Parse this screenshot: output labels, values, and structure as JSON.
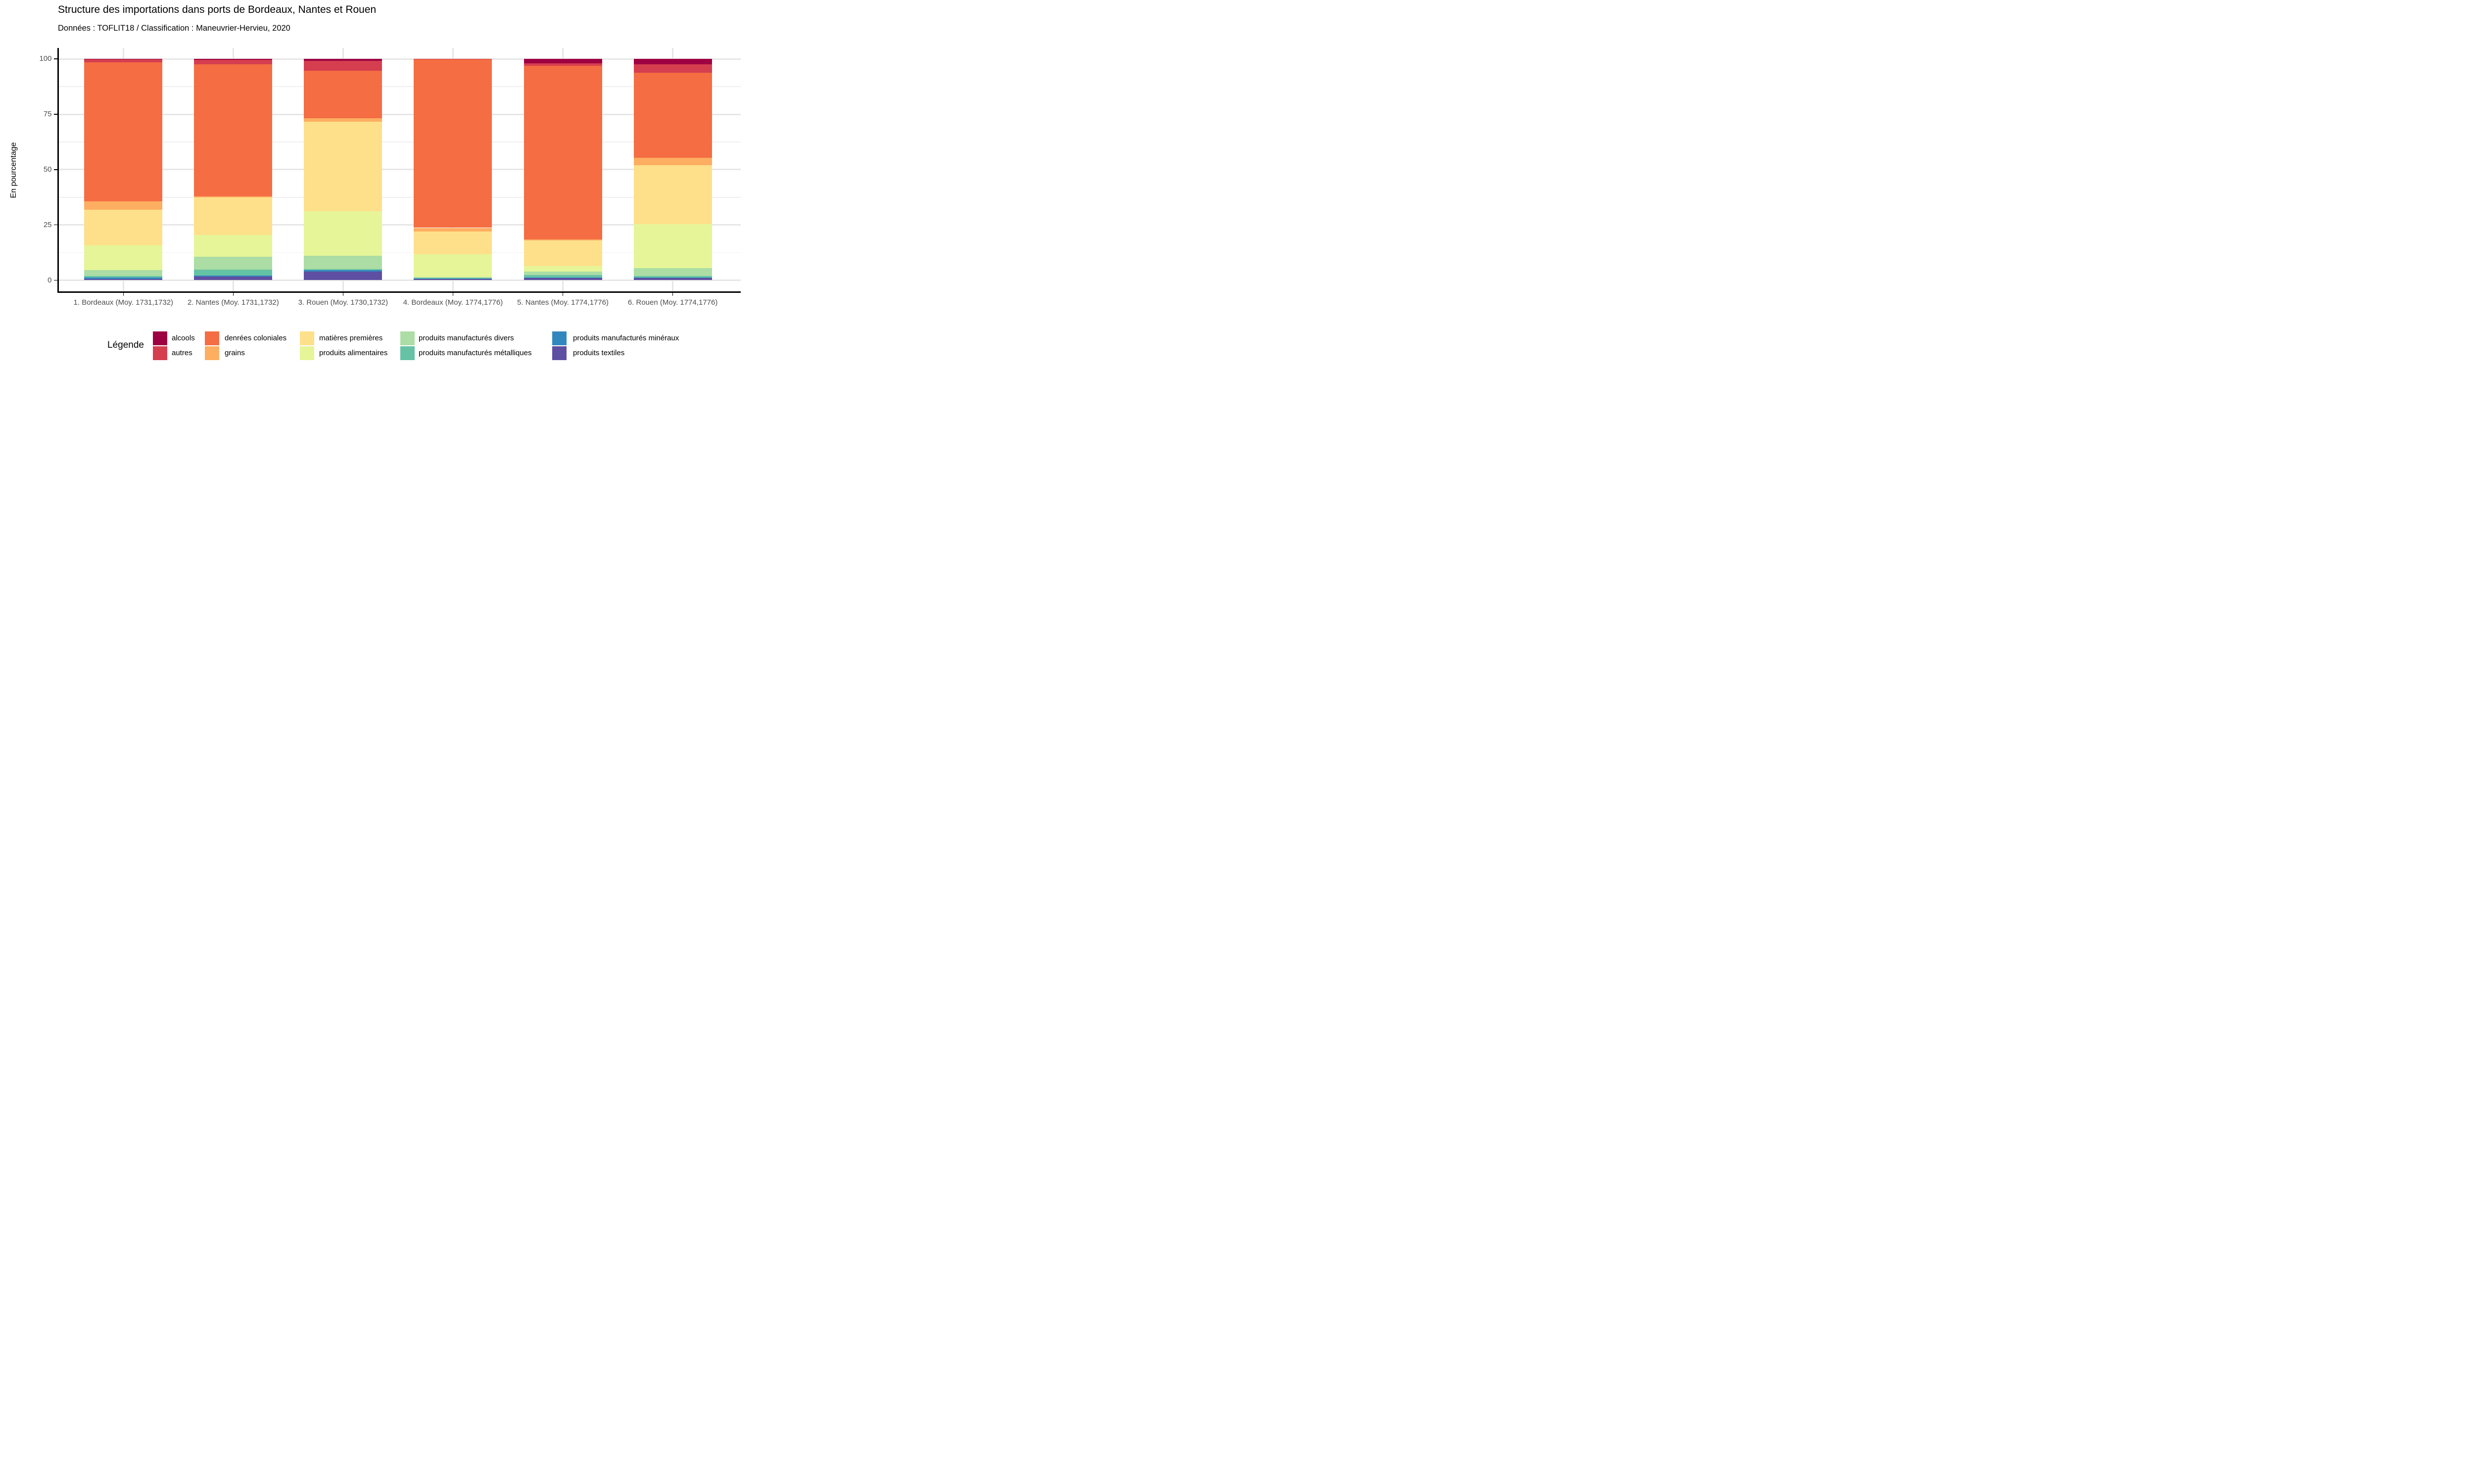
{
  "header": {
    "title": "Structure des importations dans ports de Bordeaux, Nantes et Rouen",
    "subtitle": "Données : TOFLIT18 / Classification : Maneuvrier-Hervieu, 2020"
  },
  "y_axis": {
    "title": "En pourcentage"
  },
  "legend": {
    "title": "Légende",
    "columns": [
      [
        "alcools",
        "autres"
      ],
      [
        "denrées coloniales",
        "grains"
      ],
      [
        "matières premières",
        "produits alimentaires"
      ],
      [
        "produits manufacturés divers",
        "produits manufacturés métalliques"
      ],
      [
        "produits manufacturés minéraux",
        "produits textiles"
      ]
    ]
  },
  "colors": {
    "background": "#FFFFFF",
    "axis_text": "#4D4D4D",
    "axis_line": "#000000",
    "grid_major": "#E6E6E6",
    "grid_minor": "#F0F0F0"
  },
  "chart_data": {
    "type": "bar",
    "stacked": true,
    "stack_order": "top-to-bottom",
    "title": "Structure des importations dans ports de Bordeaux, Nantes et Rouen",
    "subtitle": "Données : TOFLIT18 / Classification : Maneuvrier-Hervieu, 2020",
    "xlabel": "",
    "ylabel": "En pourcentage",
    "ylim": [
      0,
      100
    ],
    "yticks": [
      0,
      25,
      50,
      75,
      100
    ],
    "grid": true,
    "legend_position": "bottom",
    "categories": [
      "1. Bordeaux (Moy. 1731,1732)",
      "2. Nantes (Moy. 1731,1732)",
      "3. Rouen (Moy. 1730,1732)",
      "4. Bordeaux (Moy. 1774,1776)",
      "5. Nantes (Moy. 1774,1776)",
      "6. Rouen (Moy. 1774,1776)"
    ],
    "series": [
      {
        "name": "alcools",
        "color": "#9E0142",
        "values": [
          0.25,
          0.4,
          0.9,
          0,
          2.0,
          2.5
        ]
      },
      {
        "name": "autres",
        "color": "#D53E4F",
        "values": [
          1.2,
          2.0,
          4.5,
          0.2,
          1.0,
          3.6
        ]
      },
      {
        "name": "denrées coloniales",
        "color": "#F46D43",
        "values": [
          62.9,
          59.6,
          21.3,
          76.1,
          78.5,
          38.5
        ]
      },
      {
        "name": "grains",
        "color": "#FDAE61",
        "values": [
          3.8,
          0.5,
          1.6,
          1.7,
          0.55,
          3.5
        ]
      },
      {
        "name": "matières premières",
        "color": "#FEE08B",
        "values": [
          16.0,
          17.0,
          40.4,
          10.2,
          11.65,
          26.6
        ]
      },
      {
        "name": "produits alimentaires",
        "color": "#E6F598",
        "values": [
          11.3,
          9.9,
          20.3,
          10.3,
          2.35,
          19.9
        ]
      },
      {
        "name": "produits manufacturés divers",
        "color": "#ABDDA4",
        "values": [
          2.7,
          5.7,
          5.9,
          0.55,
          1.6,
          3.55
        ]
      },
      {
        "name": "produits manufacturés métalliques",
        "color": "#66C2A5",
        "values": [
          0.6,
          2.7,
          0.5,
          0.1,
          1.2,
          0.55
        ]
      },
      {
        "name": "produits manufacturés minéraux",
        "color": "#3288BD",
        "values": [
          0.7,
          0.55,
          0.7,
          0.1,
          0.2,
          0.15
        ]
      },
      {
        "name": "produits textiles",
        "color": "#5E4FA2",
        "values": [
          0.55,
          1.65,
          3.9,
          0.75,
          0.95,
          1.15
        ]
      }
    ]
  }
}
